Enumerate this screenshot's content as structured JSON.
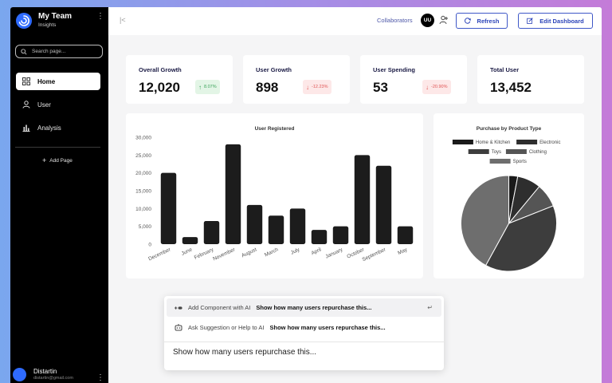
{
  "sidebar": {
    "brand_title": "My Team",
    "brand_subtitle": "Insights",
    "search_placeholder": "Search page...",
    "items": [
      {
        "label": "Home",
        "icon": "grid-icon",
        "active": true
      },
      {
        "label": "User",
        "icon": "user-icon",
        "active": false
      },
      {
        "label": "Analysis",
        "icon": "bar-chart-icon",
        "active": false
      }
    ],
    "add_page": "Add Page",
    "user_name": "Distartin",
    "user_email": "distartin@gmail.com"
  },
  "topbar": {
    "collaborators_label": "Collaborators",
    "collaborator_initials": "UU",
    "refresh_label": "Refresh",
    "edit_label": "Edit Dashboard"
  },
  "stats": [
    {
      "label": "Overall Growth",
      "value": "12,020",
      "change": "8.07%",
      "trend": "up"
    },
    {
      "label": "User Growth",
      "value": "898",
      "change": "-12.23%",
      "trend": "down"
    },
    {
      "label": "User Spending",
      "value": "53",
      "change": "-20.90%",
      "trend": "down"
    },
    {
      "label": "Total User",
      "value": "13,452",
      "change": "",
      "trend": ""
    }
  ],
  "colors": {
    "accent": "#3e57c7",
    "up": "#3ba35a",
    "down": "#e05555",
    "bar": "#1c1c1c"
  },
  "chart_data": [
    {
      "type": "bar",
      "title": "User Registered",
      "categories": [
        "December",
        "June",
        "February",
        "November",
        "August",
        "March",
        "July",
        "April",
        "January",
        "October",
        "September",
        "May"
      ],
      "values": [
        20000,
        2000,
        6500,
        28000,
        11000,
        8000,
        10000,
        4000,
        5000,
        25000,
        22000,
        5000
      ],
      "ylim": [
        0,
        30000
      ],
      "yticks": [
        "0",
        "5,000",
        "10,000",
        "15,000",
        "20,000",
        "25,000",
        "30,000"
      ],
      "grid": false
    },
    {
      "type": "pie",
      "title": "Purchase by Product Type",
      "legend": [
        {
          "name": "Home & Kitchen",
          "color": "#1a1a1a"
        },
        {
          "name": "Electronic",
          "color": "#2e2e2e"
        },
        {
          "name": "Toys",
          "color": "#3d3d3d"
        },
        {
          "name": "Clothing",
          "color": "#555555"
        },
        {
          "name": "Sports",
          "color": "#6e6e6e"
        }
      ],
      "values": [
        3,
        8,
        39,
        8,
        42
      ],
      "legend_position": "top"
    }
  ],
  "ai_popup": {
    "rows": [
      {
        "label": "Add Component with AI",
        "query": "Show how many users repurchase this...",
        "icon": "add-component-icon",
        "shortcut": "↵"
      },
      {
        "label": "Ask Suggestion or Help to AI",
        "query": "Show how many users repurchase this...",
        "icon": "robot-icon",
        "shortcut": ""
      }
    ],
    "input_value": "Show how many users repurchase this..."
  }
}
